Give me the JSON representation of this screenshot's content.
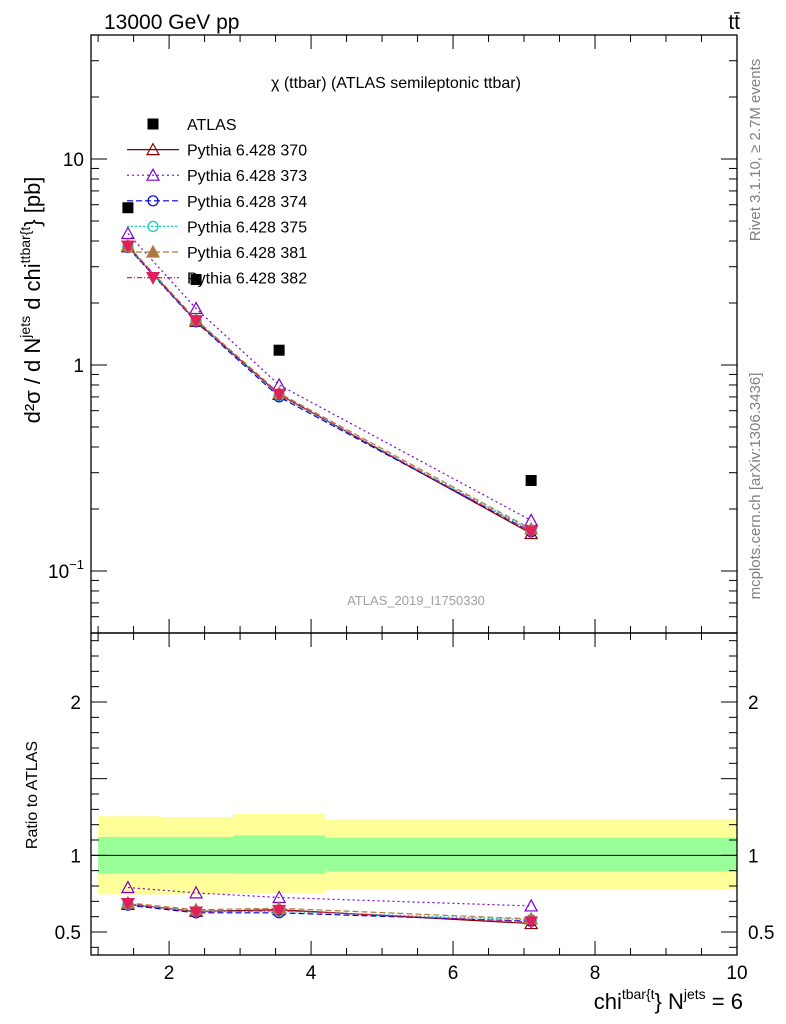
{
  "header": {
    "energy_label": "13000 GeV pp",
    "process_label": "tt̄",
    "right_label_top": "Rivet 3.1.10, ≥ 2.7M events",
    "right_label_bottom": "mcplots.cern.ch [arXiv:1306.3436]",
    "watermark": "ATLAS_2019_I1750330"
  },
  "chart_data": [
    {
      "type": "line",
      "title": "χ (ttbar) (ATLAS semileptonic ttbar)",
      "ylabel_main": "d²σ / d N",
      "ylabel_sup1": "jets",
      "ylabel_mid": " d chi",
      "ylabel_sup2": "ttbar{t",
      "ylabel_end": "} [pb]",
      "xlabel_main": "chi",
      "xlabel_sup1": "tbar{t",
      "xlabel_mid": "} N",
      "xlabel_sup2": "jets",
      "xlabel_end": " = 6",
      "yscale": "log",
      "xlim": [
        0.9,
        10.0
      ],
      "ylim": [
        0.05,
        40
      ],
      "y_ticks": [
        {
          "value": 10,
          "label": "10"
        },
        {
          "value": 1,
          "label": "1"
        },
        {
          "value": 0.1,
          "label": "10",
          "sup": "−1"
        }
      ],
      "legend_position": "top-left",
      "x": [
        1.42,
        2.38,
        3.55,
        7.1
      ],
      "reference": {
        "name": "ATLAS",
        "values": [
          5.8,
          2.6,
          1.18,
          0.275
        ],
        "color": "#000000",
        "marker": "square"
      },
      "series": [
        {
          "name": "Pythia 6.428 370",
          "values": [
            3.75,
            1.63,
            0.72,
            0.152
          ],
          "color": "#7f0000",
          "dash": "",
          "marker": "triangle-open"
        },
        {
          "name": "Pythia 6.428 373",
          "values": [
            4.35,
            1.88,
            0.8,
            0.176
          ],
          "color": "#7b00d4",
          "dash": "2,3",
          "marker": "triangle-open"
        },
        {
          "name": "Pythia 6.428 374",
          "values": [
            3.72,
            1.62,
            0.7,
            0.155
          ],
          "color": "#0000e0",
          "dash": "6,3",
          "marker": "circle-open"
        },
        {
          "name": "Pythia 6.428 375",
          "values": [
            3.74,
            1.64,
            0.71,
            0.158
          ],
          "color": "#00d0c0",
          "dash": "2,2",
          "marker": "circle-open"
        },
        {
          "name": "Pythia 6.428 381",
          "values": [
            3.8,
            1.66,
            0.73,
            0.16
          ],
          "color": "#b07840",
          "dash": "6,3",
          "marker": "triangle-filled"
        },
        {
          "name": "Pythia 6.428 382",
          "values": [
            3.78,
            1.64,
            0.72,
            0.155
          ],
          "color": "#e0205a",
          "dash": "5,2,1,2",
          "marker": "triangle-down-filled"
        }
      ]
    },
    {
      "type": "line",
      "ylabel": "Ratio to ATLAS",
      "xlim": [
        0.9,
        10.0
      ],
      "ylim": [
        0.35,
        2.45
      ],
      "y_ticks": [
        {
          "value": 2,
          "label": "2"
        },
        {
          "value": 1,
          "label": "1"
        },
        {
          "value": 0.5,
          "label": "0.5"
        }
      ],
      "x_ticks": [
        {
          "value": 2,
          "label": "2"
        },
        {
          "value": 4,
          "label": "4"
        },
        {
          "value": 6,
          "label": "6"
        },
        {
          "value": 8,
          "label": "8"
        },
        {
          "value": 10,
          "label": "10"
        }
      ],
      "bands": [
        {
          "x": [
            1.0,
            1.9
          ],
          "inner": [
            0.88,
            1.12
          ],
          "outer": [
            0.745,
            1.255
          ]
        },
        {
          "x": [
            1.9,
            2.9
          ],
          "inner": [
            0.885,
            1.12
          ],
          "outer": [
            0.745,
            1.25
          ]
        },
        {
          "x": [
            2.9,
            4.2
          ],
          "inner": [
            0.88,
            1.13
          ],
          "outer": [
            0.755,
            1.27
          ]
        },
        {
          "x": [
            4.2,
            10.0
          ],
          "inner": [
            0.895,
            1.115
          ],
          "outer": [
            0.775,
            1.235
          ]
        }
      ],
      "band_colors": {
        "inner": "#99ff99",
        "outer": "#ffff99"
      },
      "x": [
        1.42,
        2.38,
        3.55,
        7.1
      ],
      "series": [
        {
          "name": "Pythia 6.428 370",
          "values": [
            0.68,
            0.635,
            0.645,
            0.555
          ],
          "color": "#7f0000",
          "dash": "",
          "marker": "triangle-open"
        },
        {
          "name": "Pythia 6.428 373",
          "values": [
            0.79,
            0.755,
            0.725,
            0.67
          ],
          "color": "#7b00d4",
          "dash": "2,3",
          "marker": "triangle-open"
        },
        {
          "name": "Pythia 6.428 374",
          "values": [
            0.675,
            0.625,
            0.625,
            0.57
          ],
          "color": "#0000e0",
          "dash": "6,3",
          "marker": "circle-open"
        },
        {
          "name": "Pythia 6.428 375",
          "values": [
            0.68,
            0.635,
            0.635,
            0.58
          ],
          "color": "#00d0c0",
          "dash": "2,2",
          "marker": "circle-open"
        },
        {
          "name": "Pythia 6.428 381",
          "values": [
            0.69,
            0.645,
            0.655,
            0.585
          ],
          "color": "#b07840",
          "dash": "6,3",
          "marker": "triangle-filled"
        },
        {
          "name": "Pythia 6.428 382",
          "values": [
            0.685,
            0.63,
            0.64,
            0.565
          ],
          "color": "#e0205a",
          "dash": "5,2,1,2",
          "marker": "triangle-down-filled"
        }
      ]
    }
  ]
}
